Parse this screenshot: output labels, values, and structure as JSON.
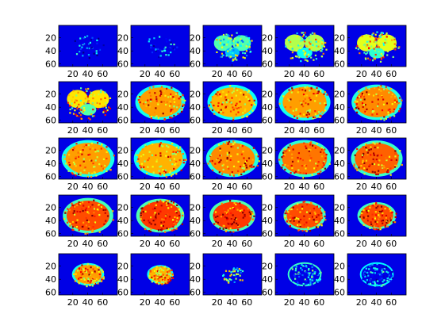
{
  "chart_data": {
    "type": "heatmap",
    "title": "",
    "colormap": "jet",
    "rows": 5,
    "cols": 5,
    "x_ticks": [
      20,
      40,
      60
    ],
    "y_ticks": [
      20,
      40,
      60
    ],
    "xlim": [
      1,
      80
    ],
    "ylim": [
      1,
      64
    ],
    "grid": false,
    "panels": [
      {
        "slice": 1,
        "intensity": 0.18,
        "extent": 0.55,
        "shape": "sparse"
      },
      {
        "slice": 2,
        "intensity": 0.22,
        "extent": 0.55,
        "shape": "sparse"
      },
      {
        "slice": 3,
        "intensity": 0.45,
        "extent": 0.7,
        "shape": "lobes"
      },
      {
        "slice": 4,
        "intensity": 0.55,
        "extent": 0.75,
        "shape": "lobes"
      },
      {
        "slice": 5,
        "intensity": 0.6,
        "extent": 0.75,
        "shape": "lobes"
      },
      {
        "slice": 6,
        "intensity": 0.65,
        "extent": 0.8,
        "shape": "lobes"
      },
      {
        "slice": 7,
        "intensity": 0.72,
        "extent": 0.85,
        "shape": "brain"
      },
      {
        "slice": 8,
        "intensity": 0.7,
        "extent": 0.85,
        "shape": "brain"
      },
      {
        "slice": 9,
        "intensity": 0.72,
        "extent": 0.88,
        "shape": "brain"
      },
      {
        "slice": 10,
        "intensity": 0.74,
        "extent": 0.86,
        "shape": "brain"
      },
      {
        "slice": 11,
        "intensity": 0.72,
        "extent": 0.9,
        "shape": "brain"
      },
      {
        "slice": 12,
        "intensity": 0.7,
        "extent": 0.9,
        "shape": "brain"
      },
      {
        "slice": 13,
        "intensity": 0.74,
        "extent": 0.9,
        "shape": "brain"
      },
      {
        "slice": 14,
        "intensity": 0.76,
        "extent": 0.9,
        "shape": "brain"
      },
      {
        "slice": 15,
        "intensity": 0.78,
        "extent": 0.88,
        "shape": "brain"
      },
      {
        "slice": 16,
        "intensity": 0.8,
        "extent": 0.86,
        "shape": "brain"
      },
      {
        "slice": 17,
        "intensity": 0.82,
        "extent": 0.82,
        "shape": "brain"
      },
      {
        "slice": 18,
        "intensity": 0.82,
        "extent": 0.78,
        "shape": "brain"
      },
      {
        "slice": 19,
        "intensity": 0.8,
        "extent": 0.72,
        "shape": "brain"
      },
      {
        "slice": 20,
        "intensity": 0.8,
        "extent": 0.66,
        "shape": "brain"
      },
      {
        "slice": 21,
        "intensity": 0.72,
        "extent": 0.55,
        "shape": "brain"
      },
      {
        "slice": 22,
        "intensity": 0.7,
        "extent": 0.45,
        "shape": "brain"
      },
      {
        "slice": 23,
        "intensity": 0.45,
        "extent": 0.4,
        "shape": "sparse"
      },
      {
        "slice": 24,
        "intensity": 0.28,
        "extent": 0.55,
        "shape": "ring"
      },
      {
        "slice": 25,
        "intensity": 0.22,
        "extent": 0.55,
        "shape": "ring"
      }
    ]
  }
}
